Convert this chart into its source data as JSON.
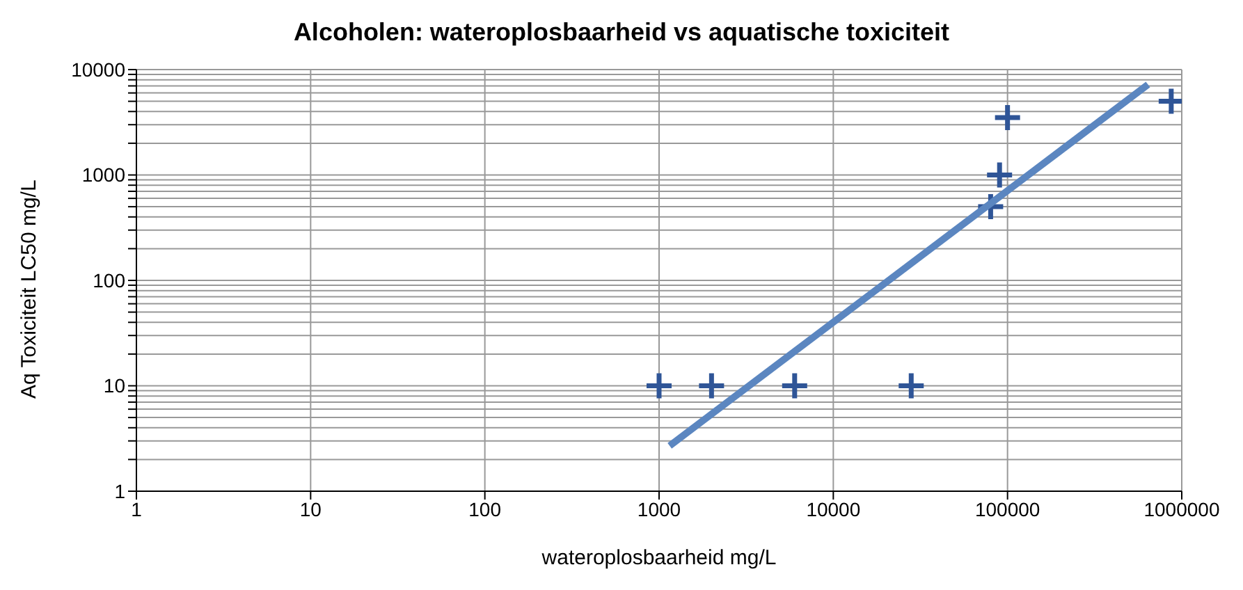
{
  "chart_data": {
    "type": "scatter",
    "title": "Alcoholen: wateroplosbaarheid vs aquatische toxiciteit",
    "xlabel": "wateroplosbaarheid mg/L",
    "ylabel": "Aq Toxiciteit LC50 mg/L",
    "log": "xy",
    "grid": true,
    "marker": "cross",
    "xlim": [
      1,
      1000000
    ],
    "xticks": [
      1,
      10,
      100,
      1000,
      10000,
      100000,
      1000000
    ],
    "ylim": [
      1,
      10000
    ],
    "yticks": [
      1,
      {
        "value": 2,
        "label": null
      },
      {
        "value": 3,
        "label": null
      },
      {
        "value": 4,
        "label": null
      },
      {
        "value": 5,
        "label": null
      },
      {
        "value": 6,
        "label": null
      },
      {
        "value": 7,
        "label": null
      },
      {
        "value": 8,
        "label": null
      },
      {
        "value": 9,
        "label": null
      },
      10,
      {
        "value": 20,
        "label": null
      },
      {
        "value": 30,
        "label": null
      },
      {
        "value": 40,
        "label": null
      },
      {
        "value": 50,
        "label": null
      },
      {
        "value": 60,
        "label": null
      },
      {
        "value": 70,
        "label": null
      },
      {
        "value": 80,
        "label": null
      },
      {
        "value": 90,
        "label": null
      },
      100,
      {
        "value": 200,
        "label": null
      },
      {
        "value": 300,
        "label": null
      },
      {
        "value": 400,
        "label": null
      },
      {
        "value": 500,
        "label": null
      },
      {
        "value": 600,
        "label": null
      },
      {
        "value": 700,
        "label": null
      },
      {
        "value": 800,
        "label": null
      },
      {
        "value": 900,
        "label": null
      },
      1000,
      {
        "value": 2000,
        "label": null
      },
      {
        "value": 3000,
        "label": null
      },
      {
        "value": 4000,
        "label": null
      },
      {
        "value": 5000,
        "label": null
      },
      {
        "value": 6000,
        "label": null
      },
      {
        "value": 7000,
        "label": null
      },
      {
        "value": 8000,
        "label": null
      },
      {
        "value": 9000,
        "label": null
      },
      10000
    ],
    "series": [
      {
        "color": "#2f5597",
        "x": [
          1000,
          2000,
          6000,
          28000,
          80000,
          90000,
          100000,
          870000
        ],
        "values": [
          10,
          10,
          10,
          10,
          500,
          1000,
          3500,
          5000
        ]
      },
      {
        "type": "line",
        "marker": "none",
        "color": "#5b86c0",
        "x": [
          1150,
          640000
        ],
        "values": [
          2.7,
          7200
        ]
      }
    ]
  }
}
